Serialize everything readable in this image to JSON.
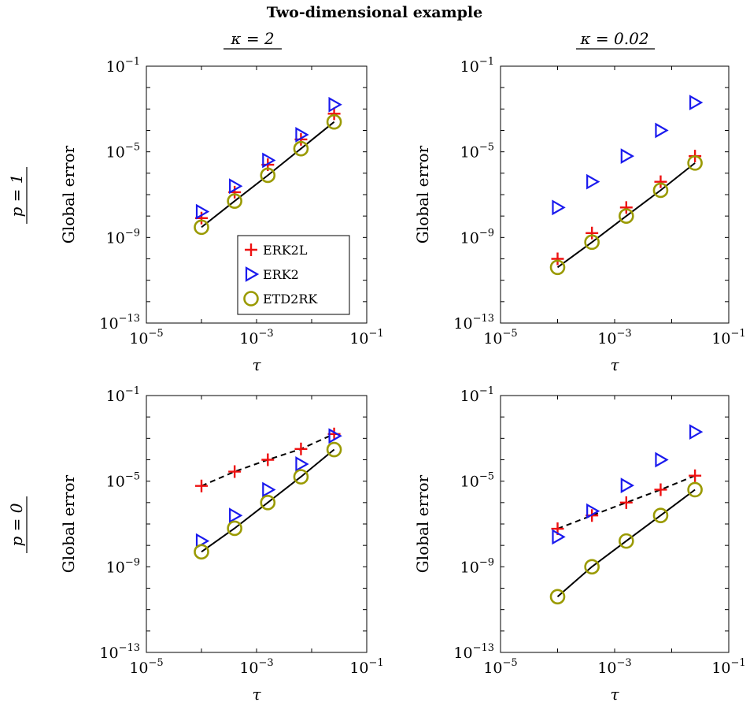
{
  "figure": {
    "title": "Two-dimensional example",
    "col_headers": [
      "κ = 2",
      "κ = 0.02"
    ],
    "row_headers": [
      "p = 1",
      "p = 0"
    ]
  },
  "chart_data": [
    {
      "type": "scatter",
      "panel": "top-left",
      "xlabel": "τ",
      "ylabel": "Global error",
      "x_scale": "log",
      "y_scale": "log",
      "xlim": [
        1e-05,
        0.1
      ],
      "ylim": [
        1e-13,
        0.1
      ],
      "xticks": [
        "10^-5",
        "10^-3",
        "10^-1"
      ],
      "yticks": [
        "10^-13",
        "10^-9",
        "10^-5",
        "10^-1"
      ],
      "legend": {
        "placement": "bottom-right",
        "entries": [
          "ERK2L",
          "ERK2",
          "ETD2RK"
        ]
      },
      "x": [
        0.0001,
        0.0004,
        0.0016,
        0.0064,
        0.0256
      ],
      "series": [
        {
          "name": "ERK2L",
          "values": [
            8e-09,
            1.3e-07,
            2.5e-06,
            3.8e-05,
            0.0006
          ]
        },
        {
          "name": "ERK2",
          "values": [
            1.6e-08,
            2.5e-07,
            4e-06,
            6.3e-05,
            0.0016
          ]
        },
        {
          "name": "ETD2RK",
          "values": [
            3e-09,
            5e-08,
            8e-07,
            1.4e-05,
            0.00025
          ]
        }
      ],
      "reference_lines": [
        {
          "style": "solid",
          "values": [
            3e-09,
            5e-08,
            8e-07,
            1.4e-05,
            0.00025
          ]
        }
      ]
    },
    {
      "type": "scatter",
      "panel": "top-right",
      "xlabel": "τ",
      "ylabel": "Global error",
      "x_scale": "log",
      "y_scale": "log",
      "xlim": [
        1e-05,
        0.1
      ],
      "ylim": [
        1e-13,
        0.1
      ],
      "xticks": [
        "10^-5",
        "10^-3",
        "10^-1"
      ],
      "yticks": [
        "10^-13",
        "10^-9",
        "10^-5",
        "10^-1"
      ],
      "x": [
        0.0001,
        0.0004,
        0.0016,
        0.0064,
        0.0256
      ],
      "series": [
        {
          "name": "ERK2L",
          "values": [
            1e-10,
            1.6e-09,
            2.5e-08,
            4e-07,
            6.3e-06
          ]
        },
        {
          "name": "ERK2",
          "values": [
            2.5e-08,
            4e-07,
            6.3e-06,
            0.0001,
            0.002
          ]
        },
        {
          "name": "ETD2RK",
          "values": [
            4e-11,
            6e-10,
            1e-08,
            1.6e-07,
            3e-06
          ]
        }
      ],
      "reference_lines": [
        {
          "style": "solid",
          "values": [
            4e-11,
            6e-10,
            1e-08,
            1.6e-07,
            3e-06
          ]
        }
      ]
    },
    {
      "type": "scatter",
      "panel": "bottom-left",
      "xlabel": "τ",
      "ylabel": "Global error",
      "x_scale": "log",
      "y_scale": "log",
      "xlim": [
        1e-05,
        0.1
      ],
      "ylim": [
        1e-13,
        0.1
      ],
      "xticks": [
        "10^-5",
        "10^-3",
        "10^-1"
      ],
      "yticks": [
        "10^-13",
        "10^-9",
        "10^-5",
        "10^-1"
      ],
      "x": [
        0.0001,
        0.0004,
        0.0016,
        0.0064,
        0.0256
      ],
      "series": [
        {
          "name": "ERK2L",
          "values": [
            6e-06,
            2.8e-05,
            0.0001,
            0.00032,
            0.0016
          ]
        },
        {
          "name": "ERK2",
          "values": [
            1.6e-08,
            2.5e-07,
            4e-06,
            6.3e-05,
            0.0013
          ]
        },
        {
          "name": "ETD2RK",
          "values": [
            5e-09,
            6.3e-08,
            1e-06,
            1.6e-05,
            0.0003
          ]
        }
      ],
      "reference_lines": [
        {
          "style": "dashed",
          "values": [
            6e-06,
            2.8e-05,
            0.0001,
            0.00032,
            0.0016
          ]
        },
        {
          "style": "solid",
          "values": [
            5e-09,
            6.3e-08,
            1e-06,
            1.6e-05,
            0.0003
          ]
        }
      ]
    },
    {
      "type": "scatter",
      "panel": "bottom-right",
      "xlabel": "τ",
      "ylabel": "Global error",
      "x_scale": "log",
      "y_scale": "log",
      "xlim": [
        1e-05,
        0.1
      ],
      "ylim": [
        1e-13,
        0.1
      ],
      "xticks": [
        "10^-5",
        "10^-3",
        "10^-1"
      ],
      "yticks": [
        "10^-13",
        "10^-9",
        "10^-5",
        "10^-1"
      ],
      "x": [
        0.0001,
        0.0004,
        0.0016,
        0.0064,
        0.0256
      ],
      "series": [
        {
          "name": "ERK2L",
          "values": [
            6e-08,
            2.5e-07,
            1e-06,
            4e-06,
            1.8e-05
          ]
        },
        {
          "name": "ERK2",
          "values": [
            2.5e-08,
            4e-07,
            6.3e-06,
            0.0001,
            0.002
          ]
        },
        {
          "name": "ETD2RK",
          "values": [
            4e-11,
            1e-09,
            1.6e-08,
            2.5e-07,
            4e-06
          ]
        }
      ],
      "reference_lines": [
        {
          "style": "dashed",
          "values": [
            6e-08,
            2.5e-07,
            1e-06,
            4e-06,
            1.8e-05
          ]
        },
        {
          "style": "solid",
          "values": [
            4e-11,
            1e-09,
            1.6e-08,
            2.5e-07,
            4e-06
          ]
        }
      ]
    }
  ],
  "colors": {
    "ERK2L": "#ee1111",
    "ERK2": "#1a1aee",
    "ETD2RK": "#9a9a00",
    "axis": "#000000"
  },
  "markers": {
    "ERK2L": "plus",
    "ERK2": "triangle-right",
    "ETD2RK": "circle"
  }
}
